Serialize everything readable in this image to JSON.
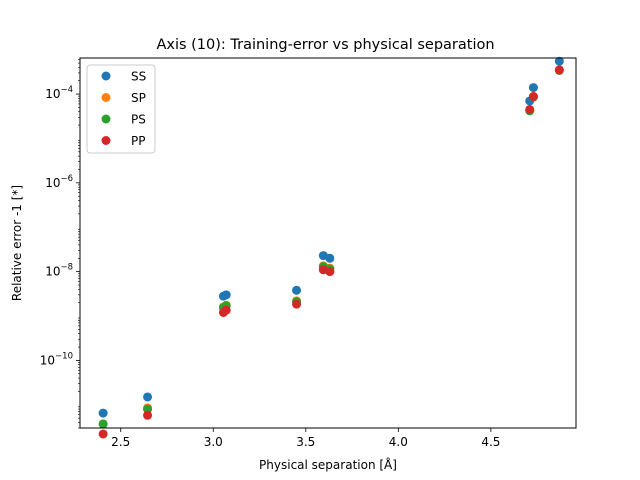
{
  "chart_data": {
    "type": "scatter",
    "title": "Axis (10): Training-error vs physical separation",
    "xlabel": "Physical separation [Å]",
    "ylabel": "Relative error -1 [*]",
    "xlim": [
      2.28,
      4.96
    ],
    "ylim": [
      3e-12,
      0.00065
    ],
    "yscale": "log",
    "x_ticks": [
      2.5,
      3.0,
      3.5,
      4.0,
      4.5
    ],
    "x_tick_labels": [
      "2.5",
      "3.0",
      "3.5",
      "4.0",
      "4.5"
    ],
    "y_ticks": [
      1e-10,
      1e-08,
      1e-06,
      0.0001
    ],
    "y_tick_labels": [
      {
        "base": "10",
        "exp": "−10"
      },
      {
        "base": "10",
        "exp": "−8"
      },
      {
        "base": "10",
        "exp": "−6"
      },
      {
        "base": "10",
        "exp": "−4"
      }
    ],
    "grid": false,
    "legend_position": "top-left",
    "series": [
      {
        "name": "SS",
        "color": "#1f77b4",
        "x": [
          2.405,
          2.645,
          3.055,
          3.07,
          3.45,
          3.595,
          3.63,
          4.71,
          4.73,
          4.87
        ],
        "y": [
          6.5e-12,
          1.5e-11,
          2.8e-09,
          3e-09,
          3.8e-09,
          2.3e-08,
          2e-08,
          7e-05,
          0.00014,
          0.00055
        ]
      },
      {
        "name": "SP",
        "color": "#ff7f0e",
        "x": [
          2.405,
          2.645,
          3.055,
          3.07,
          3.45,
          3.595,
          3.63,
          4.71,
          4.73,
          4.87
        ],
        "y": [
          3.7e-12,
          8.5e-12,
          1.6e-09,
          1.75e-09,
          2.2e-09,
          1.35e-08,
          1.2e-08,
          4.3e-05,
          8.8e-05,
          0.00035
        ]
      },
      {
        "name": "PS",
        "color": "#2ca02c",
        "x": [
          2.405,
          2.645,
          3.055,
          3.07,
          3.45,
          3.595,
          3.63,
          4.71,
          4.73,
          4.87
        ],
        "y": [
          3.7e-12,
          8e-12,
          1.55e-09,
          1.7e-09,
          2.1e-09,
          1.3e-08,
          1.15e-08,
          4.2e-05,
          8.6e-05,
          0.00034
        ]
      },
      {
        "name": "PP",
        "color": "#d62728",
        "x": [
          2.405,
          2.645,
          3.055,
          3.07,
          3.45,
          3.595,
          3.63,
          4.71,
          4.73,
          4.87
        ],
        "y": [
          2.2e-12,
          5.8e-12,
          1.2e-09,
          1.35e-09,
          1.85e-09,
          1.1e-08,
          1e-08,
          4.5e-05,
          8.8e-05,
          0.00035
        ]
      }
    ]
  }
}
